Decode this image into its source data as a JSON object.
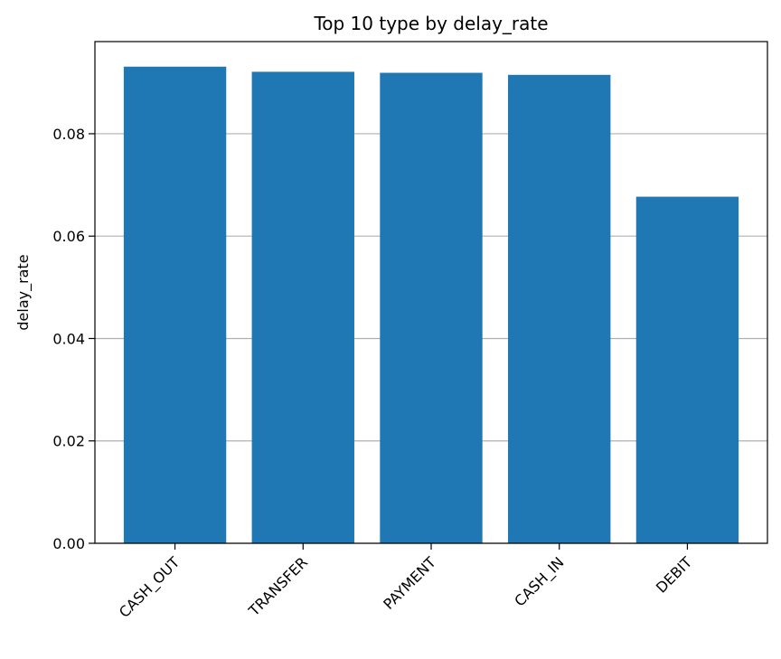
{
  "chart_data": {
    "type": "bar",
    "title": "Top 10 type by delay_rate",
    "xlabel": "",
    "ylabel": "delay_rate",
    "categories": [
      "CASH_OUT",
      "TRANSFER",
      "PAYMENT",
      "CASH_IN",
      "DEBIT"
    ],
    "values": [
      0.0931,
      0.0921,
      0.0919,
      0.0915,
      0.0677
    ],
    "ylim": [
      0,
      0.098
    ],
    "yticks": [
      0.0,
      0.02,
      0.04,
      0.06,
      0.08
    ],
    "ytick_labels": [
      "0.00",
      "0.02",
      "0.04",
      "0.06",
      "0.08"
    ],
    "grid": "y-major",
    "x_label_rotation_deg": -45,
    "legend": "none"
  },
  "colors": {
    "bar": "#1f77b4",
    "grid": "#b0b0b0",
    "axis": "#000000",
    "background": "#ffffff"
  }
}
